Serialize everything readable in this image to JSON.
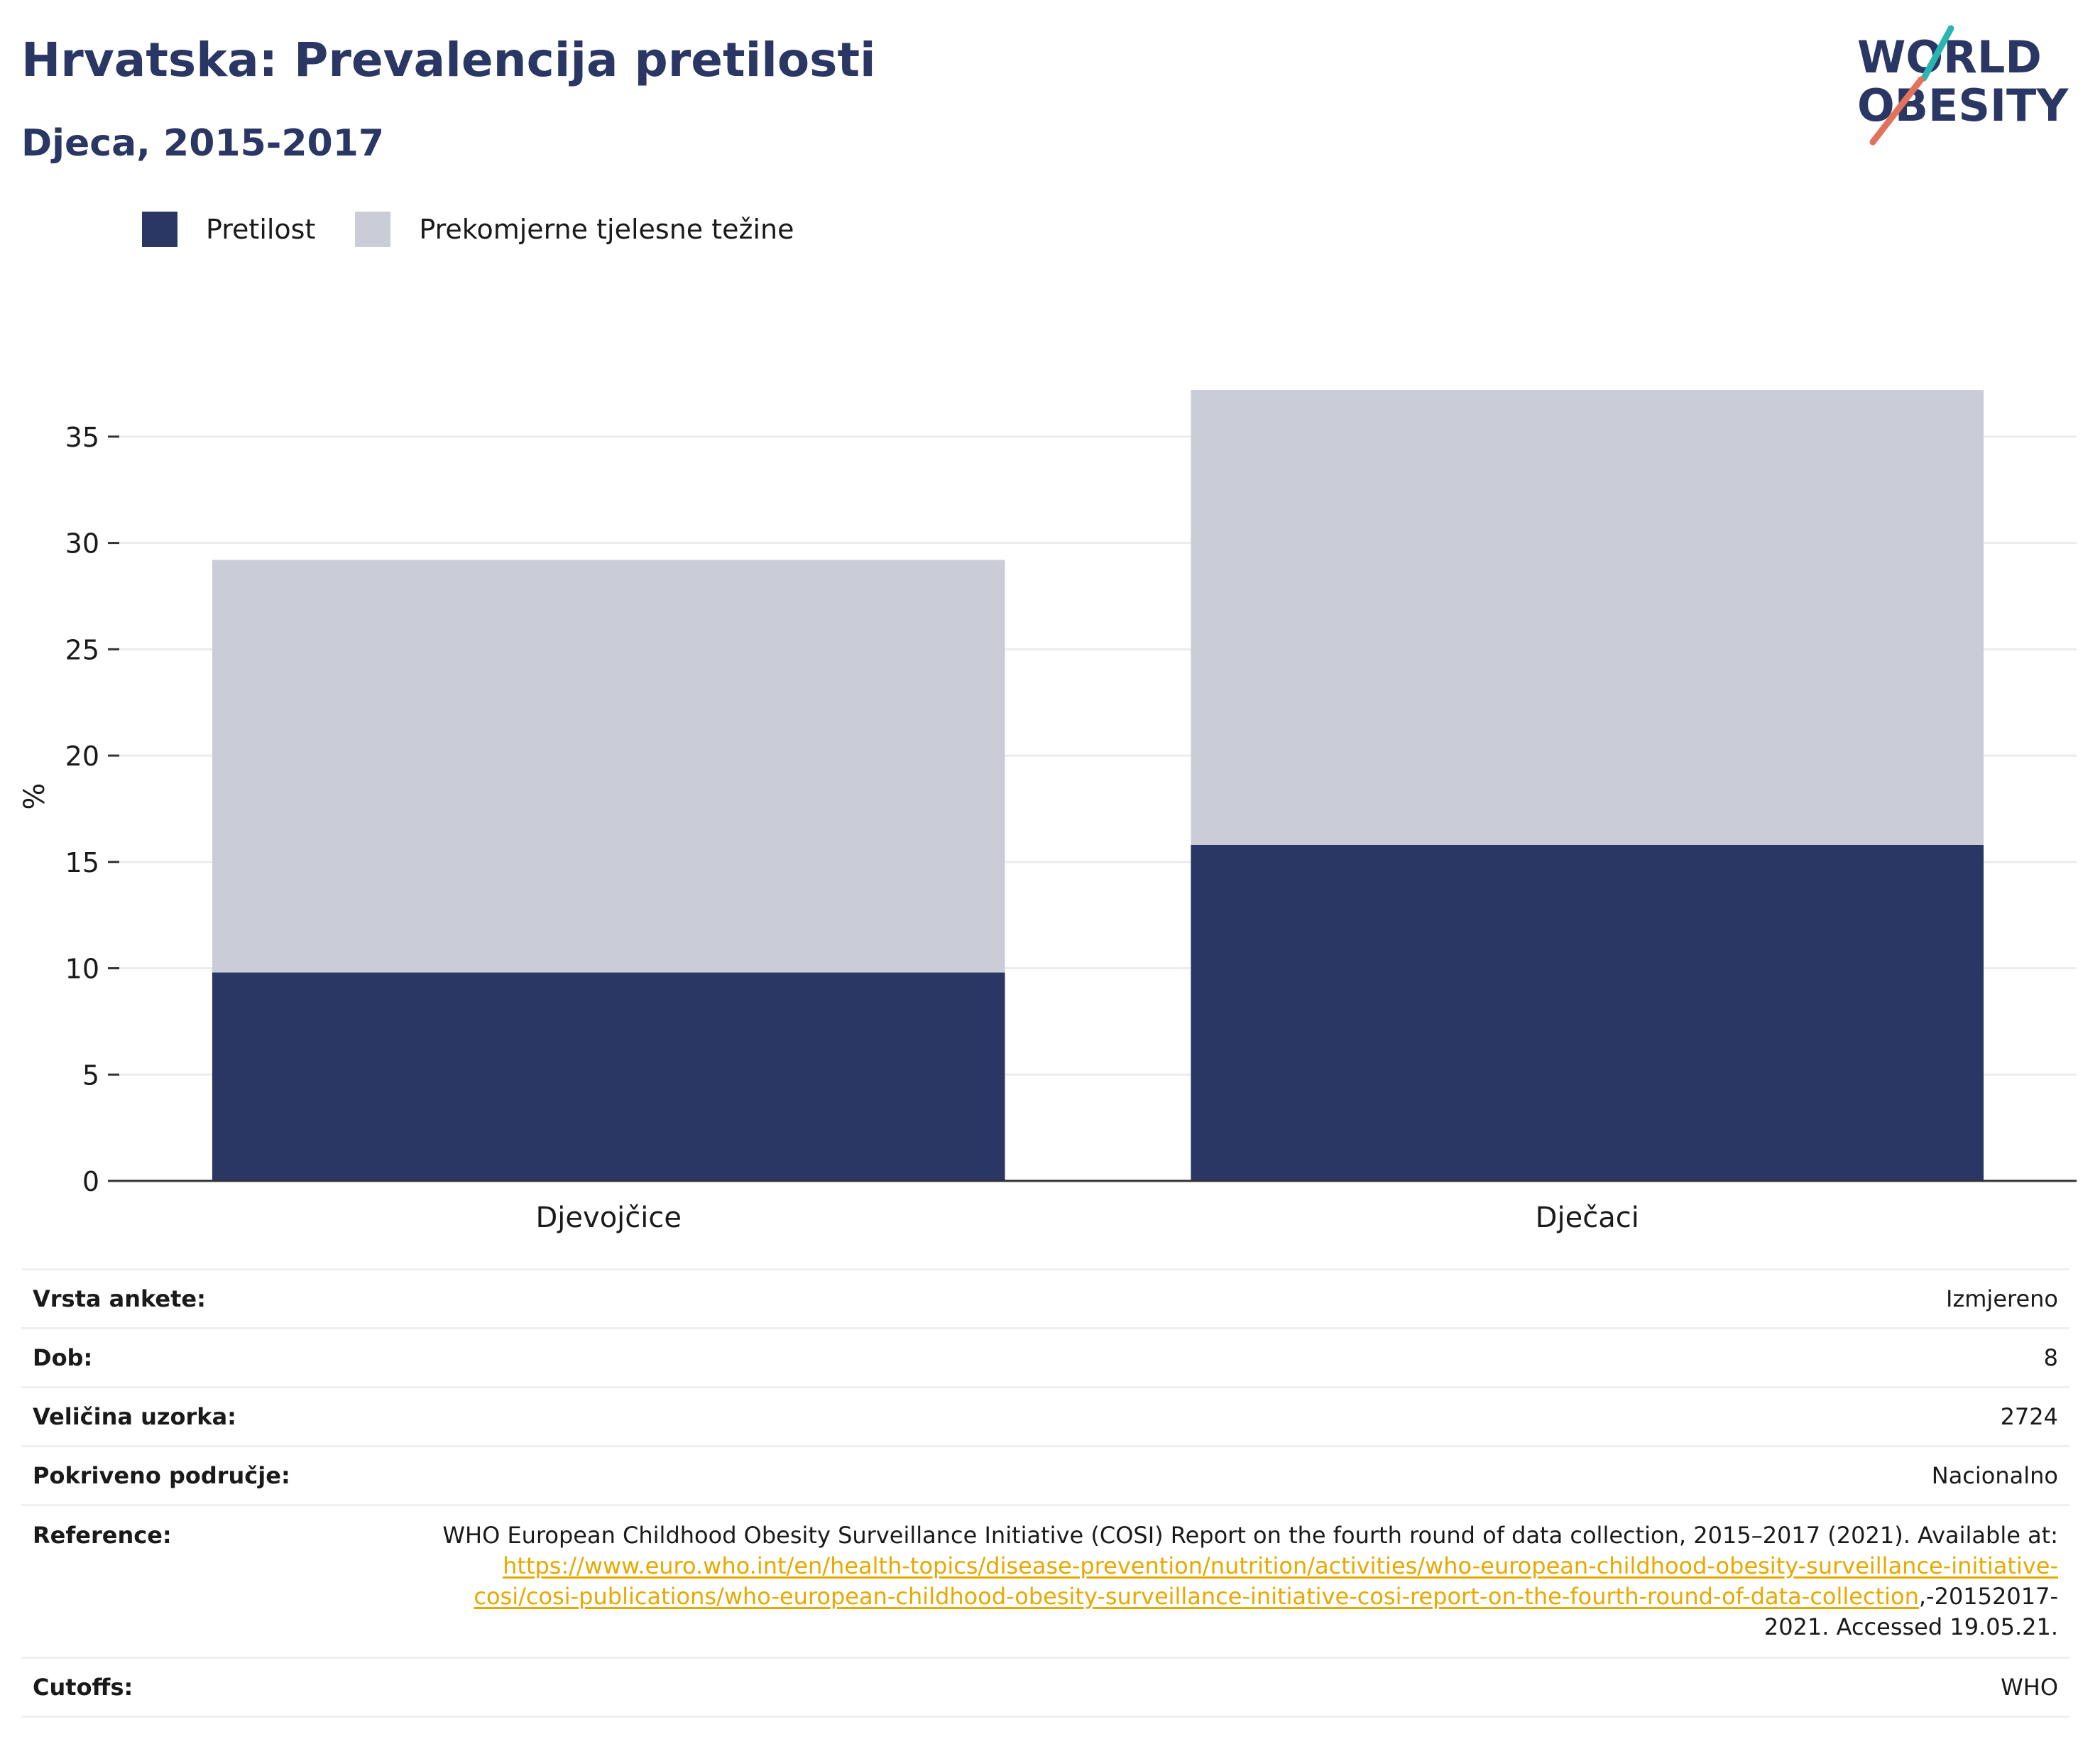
{
  "header": {
    "title": "Hrvatska: Prevalencija pretilosti",
    "subtitle": "Djeca, 2015-2017"
  },
  "logo": {
    "line1": "WORLD",
    "line2": "OBESITY",
    "colors": {
      "navy": "#2a3663",
      "teal": "#2bb5b0",
      "coral": "#e2725b"
    }
  },
  "legend": [
    {
      "label": "Pretilost",
      "color": "#2a3663"
    },
    {
      "label": "Prekomjerne tjelesne težine",
      "color": "#cacdd8"
    }
  ],
  "chart_data": {
    "type": "bar",
    "stacked": true,
    "categories": [
      "Djevojčice",
      "Dječaci"
    ],
    "series": [
      {
        "name": "Pretilost",
        "color": "#2a3663",
        "values": [
          9.8,
          15.8
        ]
      },
      {
        "name": "Prekomjerne tjelesne težine",
        "color": "#cacdd8",
        "values": [
          19.4,
          21.4
        ]
      }
    ],
    "ylabel": "%",
    "ylim": [
      0,
      37.5
    ],
    "yticks": [
      0,
      5,
      10,
      15,
      20,
      25,
      30,
      35
    ],
    "grid": true,
    "legend_position": "top-left"
  },
  "meta": {
    "survey_type": {
      "label": "Vrsta ankete:",
      "value": "Izmjereno"
    },
    "age": {
      "label": "Dob:",
      "value": "8"
    },
    "sample_size": {
      "label": "Veličina uzorka:",
      "value": "2724"
    },
    "coverage": {
      "label": "Pokriveno područje:",
      "value": "Nacionalno"
    },
    "reference": {
      "label": "Reference:",
      "text_before": "WHO European Childhood Obesity Surveillance Initiative (COSI) Report on the fourth round of data collection, 2015–2017 (2021). Available at: ",
      "link": "https://www.euro.who.int/en/health-topics/disease-prevention/nutrition/activities/who-european-childhood-obesity-surveillance-initiative-cosi/cosi-publications/who-european-childhood-obesity-surveillance-initiative-cosi-report-on-the-fourth-round-of-data-collection",
      "text_after": ",-20152017-2021. Accessed 19.05.21."
    },
    "cutoffs": {
      "label": "Cutoffs:",
      "value": "WHO"
    }
  }
}
